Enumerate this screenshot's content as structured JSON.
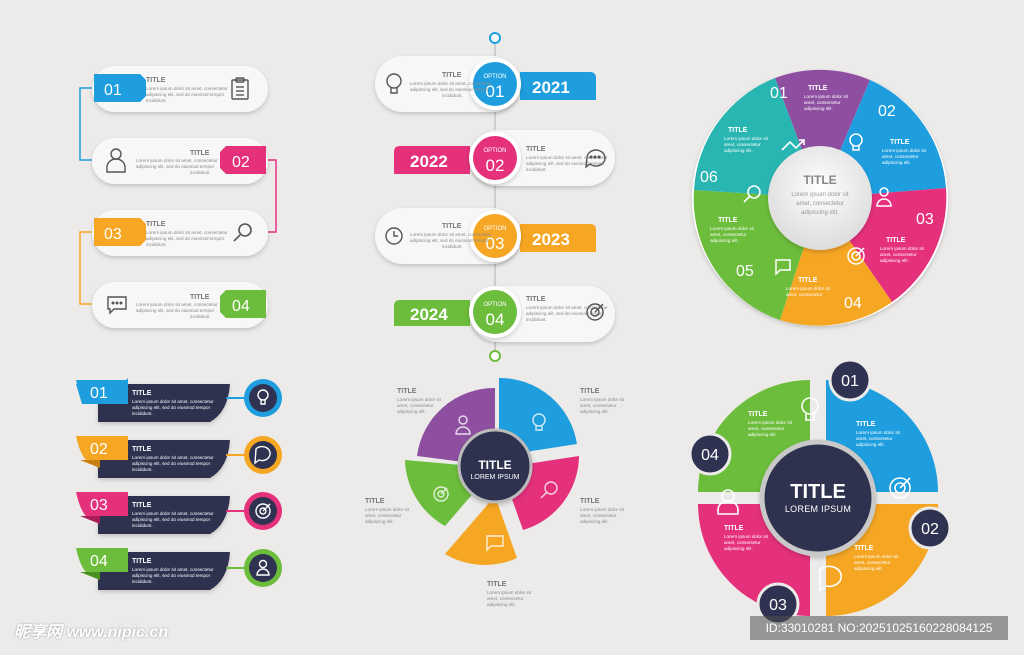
{
  "colors": {
    "blue": "#1e9ede",
    "pink": "#e5307c",
    "yellow": "#f5a623",
    "green": "#6cbd3b",
    "purple": "#8e4fa1",
    "teal": "#29b6b2",
    "navy": "#2f3250"
  },
  "placeholder_title": "TITLE",
  "lorem3": [
    "Lorem ipsum dolor sit amet, consectetur",
    "adipiscing elit, sed do eiusmod tempor",
    "incididunt."
  ],
  "lorem_short": [
    "Lorem ipsum dolor sit",
    "amet, consectetur",
    "adipiscing elit."
  ],
  "steps_left": [
    {
      "num": "01",
      "icon": "clipboard-icon"
    },
    {
      "num": "02",
      "icon": "person-icon"
    },
    {
      "num": "03",
      "icon": "search-icon"
    },
    {
      "num": "04",
      "icon": "chat-icon"
    }
  ],
  "timeline": [
    {
      "option_label": "OPTION",
      "option_num": "01",
      "year": "2021"
    },
    {
      "option_label": "OPTION",
      "option_num": "02",
      "year": "2022"
    },
    {
      "option_label": "OPTION",
      "option_num": "03",
      "year": "2023"
    },
    {
      "option_label": "OPTION",
      "option_num": "04",
      "year": "2024"
    }
  ],
  "cycle6": {
    "center_title": "TITLE",
    "center_text": [
      "Lorem ipsum dolor sit",
      "amet, consectetur",
      "adipiscing elit."
    ],
    "segments": [
      "01",
      "02",
      "03",
      "04",
      "05",
      "06"
    ]
  },
  "ribbons": [
    {
      "num": "01",
      "icon": "lightbulb-icon"
    },
    {
      "num": "02",
      "icon": "chat-icon"
    },
    {
      "num": "03",
      "icon": "target-icon"
    },
    {
      "num": "04",
      "icon": "person-icon"
    }
  ],
  "donut": {
    "center_title": "TITLE",
    "center_sub": "LOREM IPSUM"
  },
  "cycle4": {
    "center_title": "TITLE",
    "center_sub": "LOREM IPSUM",
    "badges": [
      "01",
      "02",
      "03",
      "04"
    ]
  },
  "watermark": {
    "left": "昵享网 www.nipic.cn",
    "right": "ID:33010281 NO:20251025160228084125"
  }
}
